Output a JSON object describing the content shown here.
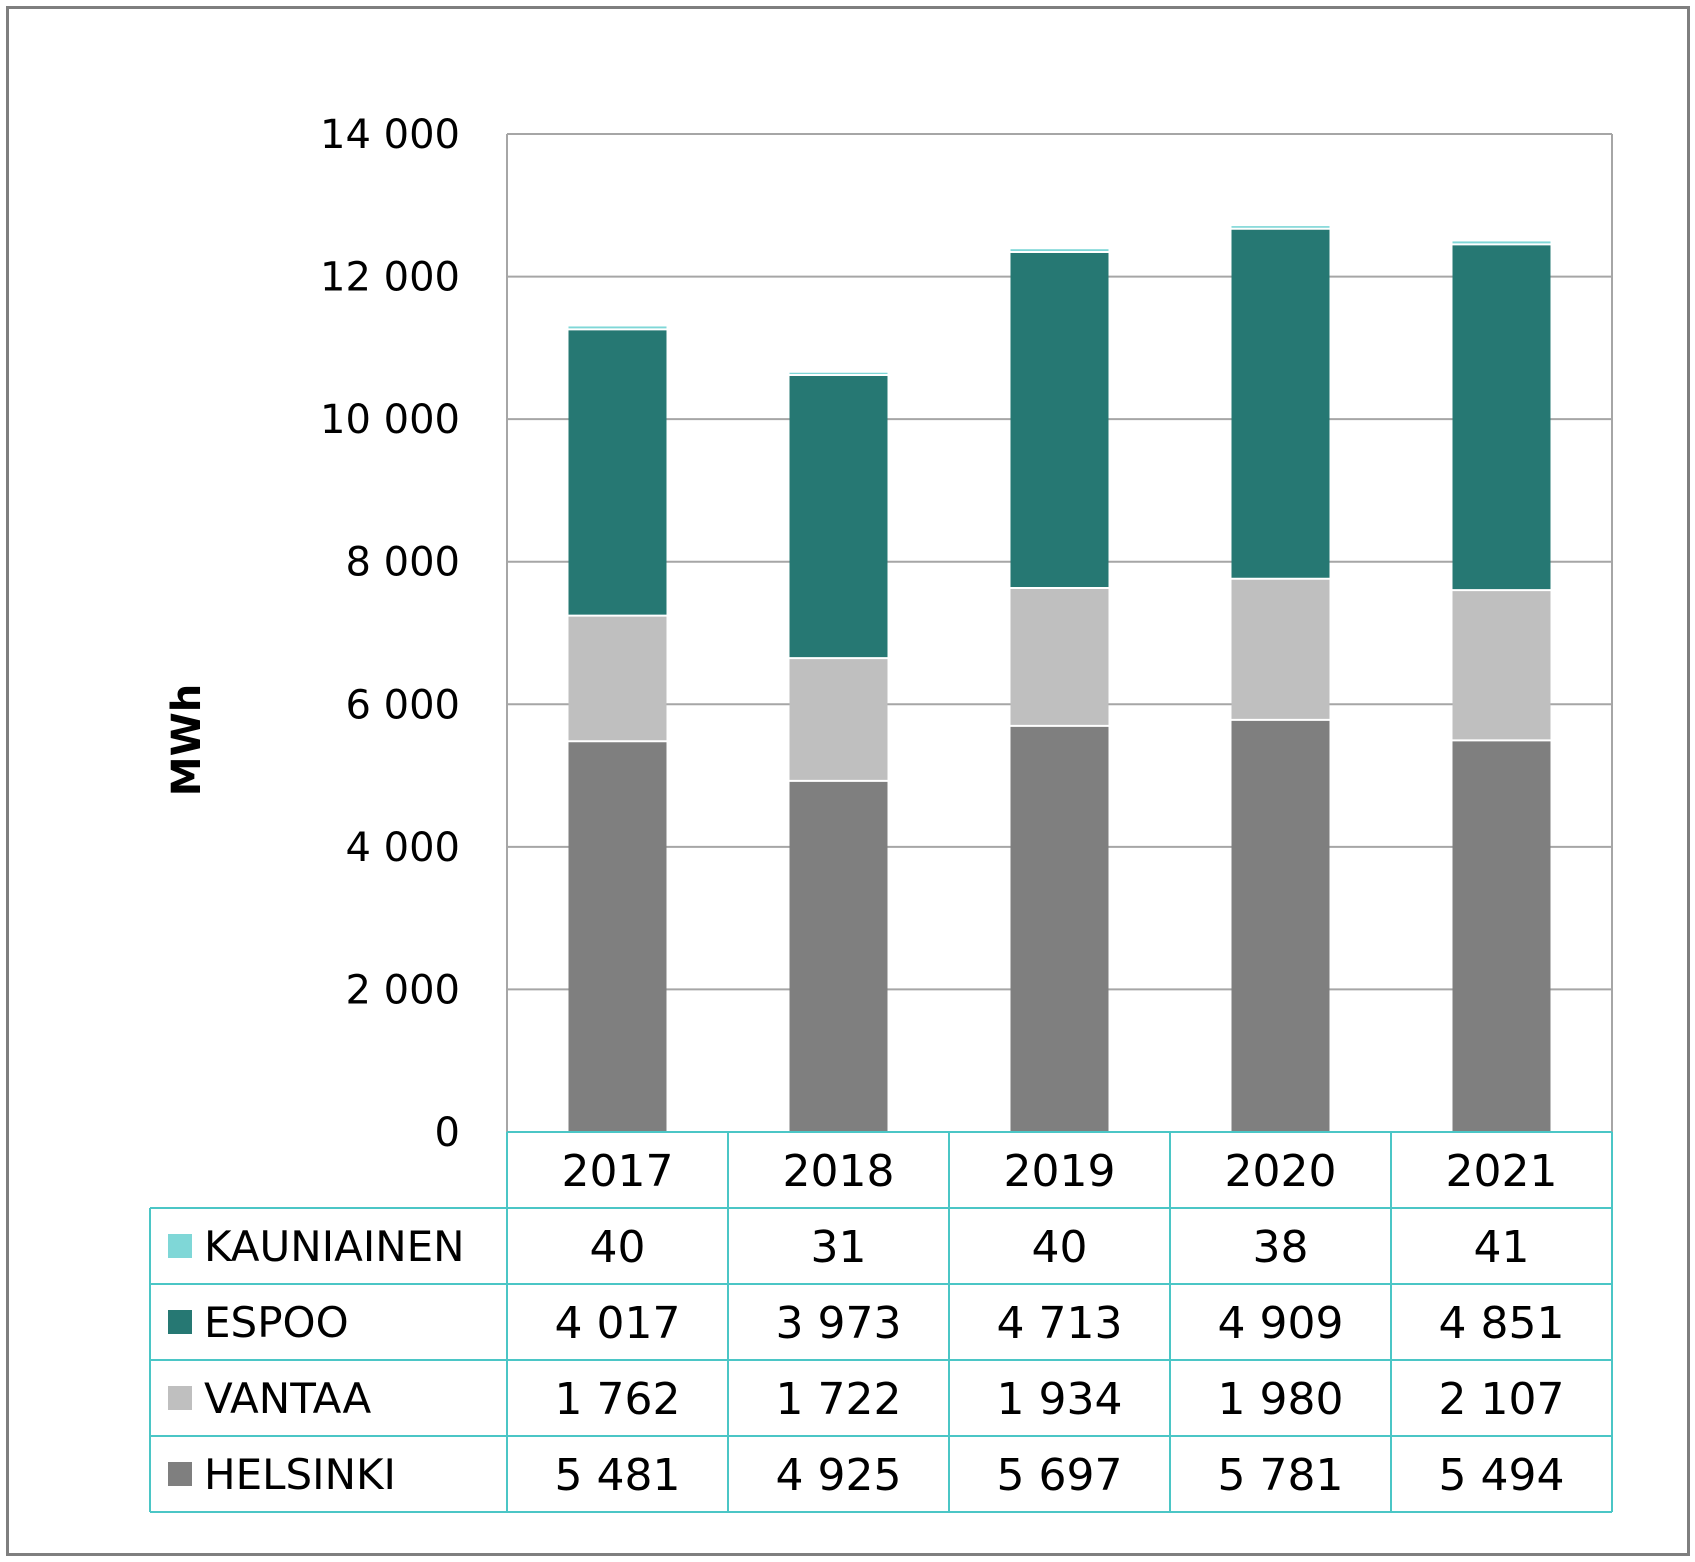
{
  "chart_data": {
    "type": "bar",
    "stacked": true,
    "categories": [
      "2017",
      "2018",
      "2019",
      "2020",
      "2021"
    ],
    "ylabel": "MWh",
    "xlabel": "",
    "title": "",
    "ylim": [
      0,
      14000
    ],
    "yticks": [
      0,
      2000,
      4000,
      6000,
      8000,
      10000,
      12000,
      14000
    ],
    "ytick_labels": [
      "0",
      "2 000",
      "4 000",
      "6 000",
      "8 000",
      "10 000",
      "12 000",
      "14 000"
    ],
    "grid": true,
    "legend": "data-table",
    "series": [
      {
        "name": "HELSINKI",
        "color": "#7f7f7f",
        "values": [
          5481,
          4925,
          5697,
          5781,
          5494
        ],
        "labels": [
          "5 481",
          "4 925",
          "5 697",
          "5 781",
          "5 494"
        ]
      },
      {
        "name": "VANTAA",
        "color": "#bfbfbf",
        "values": [
          1762,
          1722,
          1934,
          1980,
          2107
        ],
        "labels": [
          "1 762",
          "1 722",
          "1 934",
          "1 980",
          "2 107"
        ]
      },
      {
        "name": "ESPOO",
        "color": "#267873",
        "values": [
          4017,
          3973,
          4713,
          4909,
          4851
        ],
        "labels": [
          "4 017",
          "3 973",
          "4 713",
          "4 909",
          "4 851"
        ]
      },
      {
        "name": "KAUNIAINEN",
        "color": "#7fd7d7",
        "values": [
          40,
          31,
          40,
          38,
          41
        ],
        "labels": [
          "40",
          "31",
          "40",
          "38",
          "41"
        ]
      }
    ],
    "table_row_order": [
      "KAUNIAINEN",
      "ESPOO",
      "VANTAA",
      "HELSINKI"
    ],
    "colors": {
      "grid": "#a6a6a6",
      "table_border": "#4bc6c6",
      "frame": "#7f7f7f"
    }
  }
}
